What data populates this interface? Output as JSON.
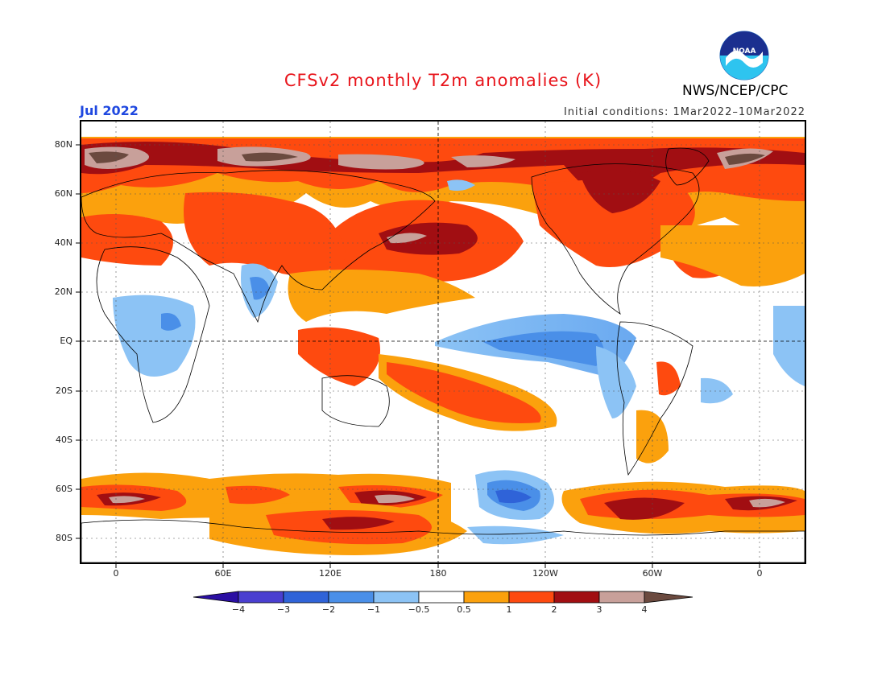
{
  "title": "CFSv2 monthly T2m anomalies (K)",
  "month": "Jul 2022",
  "initial_conditions": "Initial conditions: 1Mar2022–10Mar2022",
  "agency": "NWS/NCEP/CPC",
  "logo_text": "NOAA",
  "lat_labels": [
    "80N",
    "60N",
    "40N",
    "20N",
    "EQ",
    "20S",
    "40S",
    "60S",
    "80S"
  ],
  "lon_labels": [
    "0",
    "60E",
    "120E",
    "180",
    "120W",
    "60W",
    "0"
  ],
  "colorbar": {
    "labels": [
      "−4",
      "−3",
      "−2",
      "−1",
      "−0.5",
      "0.5",
      "1",
      "2",
      "3",
      "4"
    ],
    "colors": [
      "#2b0fa3",
      "#4a3fd0",
      "#2f63d8",
      "#4a8fe8",
      "#8cc3f5",
      "#ffffff",
      "#fba10d",
      "#fe4a0f",
      "#a10e12",
      "#c8a09a",
      "#6b4a3f"
    ]
  },
  "colors": {
    "title": "#e8141b",
    "month": "#1f48e0",
    "ocean_base": "#ffffff",
    "land_outline": "#000000"
  }
}
